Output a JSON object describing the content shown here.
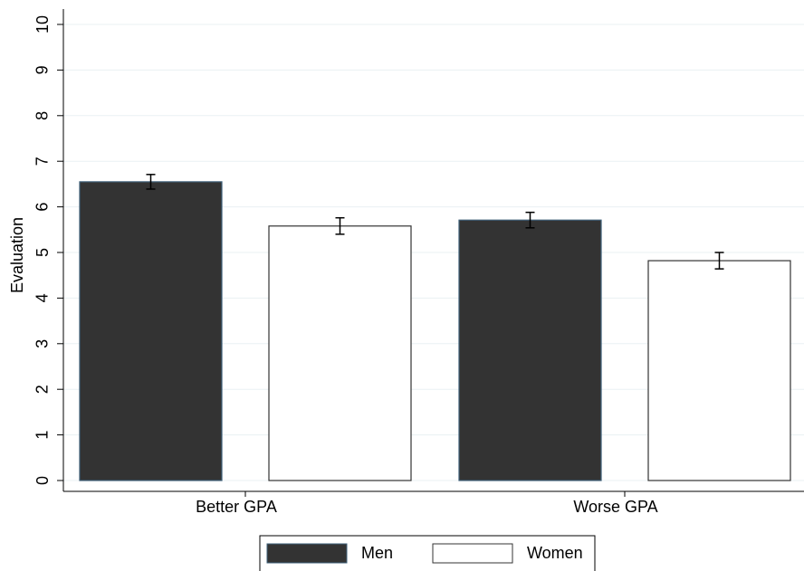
{
  "chart_data": {
    "type": "bar",
    "y_label": "Evaluation",
    "categories": [
      "Better GPA",
      "Worse GPA"
    ],
    "series": [
      {
        "name": "Men",
        "color": "#333333",
        "values": [
          6.55,
          5.71
        ],
        "errors": [
          0.16,
          0.17
        ]
      },
      {
        "name": "Women",
        "color": "#ffffff",
        "values": [
          5.58,
          4.82
        ],
        "errors": [
          0.18,
          0.18
        ]
      }
    ],
    "ylim": [
      0,
      10
    ],
    "yticks": [
      0,
      1,
      2,
      3,
      4,
      5,
      6,
      7,
      8,
      9,
      10
    ],
    "grid": true,
    "legend": "bottom"
  }
}
